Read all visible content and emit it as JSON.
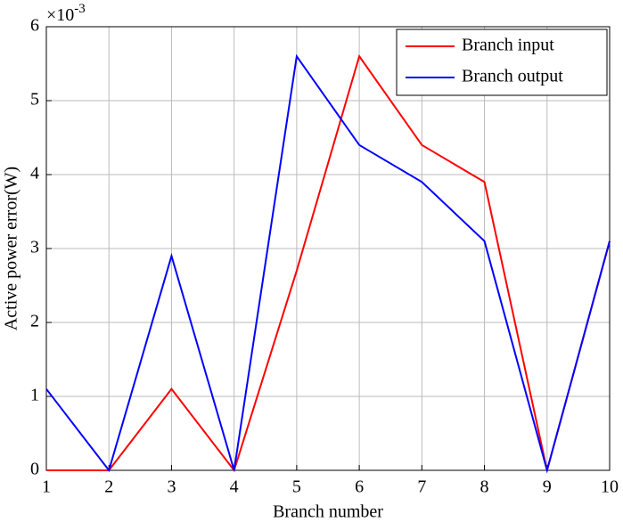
{
  "chart_data": {
    "type": "line",
    "xlabel": "Branch number",
    "ylabel": "Active power error(W)",
    "y_exponent": {
      "base": "×10",
      "power": "-3"
    },
    "x": [
      1,
      2,
      3,
      4,
      5,
      6,
      7,
      8,
      9,
      10
    ],
    "series": [
      {
        "name": "Branch input",
        "color": "#ff0000",
        "values": [
          0,
          0,
          1.1,
          0,
          2.7,
          5.6,
          4.4,
          3.9,
          0,
          3.1
        ]
      },
      {
        "name": "Branch output",
        "color": "#0000ff",
        "values": [
          1.1,
          0,
          2.9,
          0,
          5.6,
          4.4,
          3.9,
          3.1,
          0,
          3.1
        ]
      }
    ],
    "xlim": [
      1,
      10
    ],
    "xticks": [
      1,
      2,
      3,
      4,
      5,
      6,
      7,
      8,
      9,
      10
    ],
    "ylim": [
      0,
      6
    ],
    "yticks": [
      0,
      1,
      2,
      3,
      4,
      5,
      6
    ],
    "grid": true,
    "legend": "upper right"
  }
}
